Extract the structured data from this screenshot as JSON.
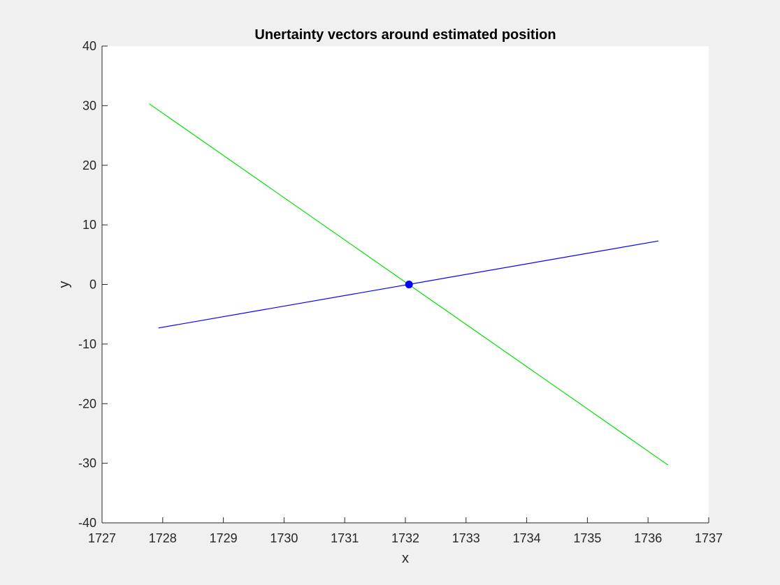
{
  "chart_data": {
    "type": "line",
    "title": "Unertainty vectors around estimated position",
    "xlabel": "x",
    "ylabel": "y",
    "xlim": [
      1727,
      1737
    ],
    "ylim": [
      -40,
      40
    ],
    "xticks": [
      1727,
      1728,
      1729,
      1730,
      1731,
      1732,
      1733,
      1734,
      1735,
      1736,
      1737
    ],
    "yticks": [
      -40,
      -30,
      -20,
      -10,
      0,
      10,
      20,
      30,
      40
    ],
    "grid": false,
    "series": [
      {
        "color": "#00e000",
        "x": [
          1727.78,
          1736.33
        ],
        "y": [
          30.3,
          -30.3
        ]
      },
      {
        "color": "#0000ff",
        "x": [
          1727.93,
          1736.17
        ],
        "y": [
          -7.3,
          7.3
        ]
      }
    ],
    "points": [
      {
        "x": 1732.06,
        "y": 0,
        "color": "#0000ff"
      }
    ]
  },
  "colors": {
    "figure_bg": "#f0f0f0",
    "axes_bg": "#ffffff",
    "axis": "#262626"
  }
}
